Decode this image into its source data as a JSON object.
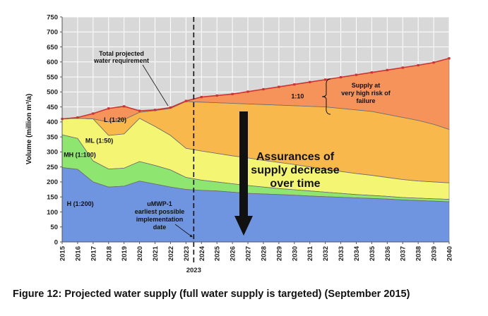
{
  "caption": "Figure 12: Projected water supply (full water supply is targeted) (September 2015)",
  "chart_data": {
    "type": "area",
    "ylabel": "Volume (million m³/a)",
    "xlabel": "",
    "ylim": [
      0,
      750
    ],
    "yticks": [
      0,
      50,
      100,
      150,
      200,
      250,
      300,
      350,
      400,
      450,
      500,
      550,
      600,
      650,
      700,
      750
    ],
    "x": [
      2015,
      2016,
      2017,
      2018,
      2019,
      2020,
      2021,
      2022,
      2023,
      2024,
      2025,
      2026,
      2027,
      2028,
      2029,
      2030,
      2031,
      2032,
      2033,
      2034,
      2035,
      2036,
      2037,
      2038,
      2039,
      2040
    ],
    "grid": true,
    "series": [
      {
        "name": "H (1:200)",
        "color": "#6f94e0",
        "values": [
          248,
          242,
          200,
          183,
          186,
          203,
          193,
          183,
          175,
          172,
          170,
          166,
          162,
          160,
          158,
          156,
          153,
          151,
          149,
          147,
          145,
          143,
          140,
          138,
          136,
          134
        ]
      },
      {
        "name": "MH (1:100)",
        "color": "#8ee56f",
        "values": [
          357,
          345,
          270,
          243,
          246,
          268,
          255,
          240,
          215,
          206,
          200,
          194,
          188,
          183,
          178,
          174,
          170,
          166,
          162,
          158,
          155,
          152,
          148,
          146,
          144,
          142
        ]
      },
      {
        "name": "ML (1:50)",
        "color": "#f5f574",
        "values": [
          410,
          412,
          410,
          355,
          360,
          412,
          385,
          355,
          312,
          303,
          295,
          287,
          280,
          272,
          265,
          258,
          250,
          242,
          235,
          228,
          222,
          215,
          208,
          203,
          200,
          197
        ]
      },
      {
        "name": "L (1:20)",
        "color": "#f8b84c",
        "values": [
          410,
          412,
          410,
          400,
          408,
          432,
          438,
          445,
          468,
          466,
          464,
          462,
          460,
          458,
          456,
          454,
          452,
          450,
          445,
          440,
          435,
          425,
          415,
          405,
          392,
          375
        ]
      },
      {
        "name": "1:10",
        "color": "#f5935a",
        "values": [
          410,
          415,
          428,
          445,
          452,
          437,
          440,
          448,
          470,
          483,
          488,
          493,
          501,
          509,
          517,
          525,
          533,
          541,
          549,
          557,
          565,
          573,
          581,
          589,
          598,
          612
        ]
      }
    ],
    "requirement_line": {
      "name": "Total projected water requirement",
      "color": "#cc3333",
      "values": [
        410,
        415,
        428,
        445,
        452,
        437,
        440,
        448,
        470,
        483,
        488,
        493,
        501,
        509,
        517,
        525,
        533,
        541,
        549,
        557,
        565,
        573,
        581,
        589,
        598,
        612
      ]
    },
    "marker_year": {
      "value": 2023,
      "label": "2023"
    },
    "annotations": {
      "total_requirement": [
        "Total projected",
        "water requirement"
      ],
      "very_high_risk": [
        "Supply at",
        "very high risk of",
        "failure"
      ],
      "umwp": [
        "uMWP-1",
        "earliest possible",
        "implementation",
        "date"
      ],
      "assurance": [
        "Assurances of",
        "supply decrease",
        "over time"
      ]
    }
  }
}
